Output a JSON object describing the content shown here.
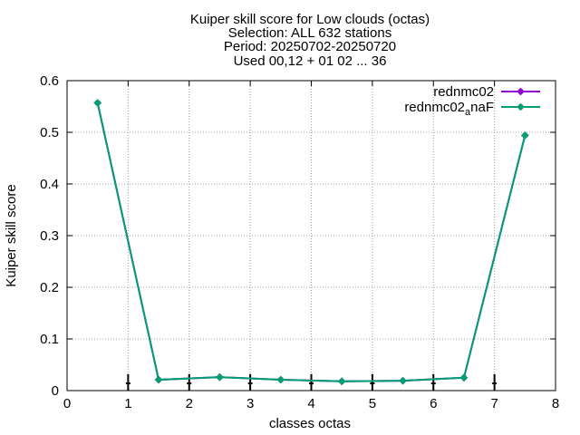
{
  "chart_data": {
    "type": "line",
    "title_lines": [
      "Kuiper skill score  for Low clouds (octas)",
      "Selection: ALL    632 stations",
      "Period: 20250702-20250720",
      "Used 00,12 + 01 02 ... 36"
    ],
    "xlabel": "classes octas",
    "ylabel": "Kuiper skill score",
    "xlim": [
      0,
      8
    ],
    "ylim": [
      0,
      0.6
    ],
    "xticks": [
      0,
      1,
      2,
      3,
      4,
      5,
      6,
      7,
      8
    ],
    "yticks": [
      0,
      0.1,
      0.2,
      0.3,
      0.4,
      0.5,
      0.6
    ],
    "xtick_labels": [
      "0",
      "1",
      "2",
      "3",
      "4",
      "5",
      "6",
      "7",
      "8"
    ],
    "ytick_labels": [
      "0",
      "0.1",
      "0.2",
      "0.3",
      "0.4",
      "0.5",
      "0.6"
    ],
    "grid": true,
    "legend_position": "top-right",
    "x": [
      0.5,
      1.5,
      2.5,
      3.5,
      4.5,
      5.5,
      6.5,
      7.5
    ],
    "series": [
      {
        "name": "rednmc02",
        "color": "#9400d3",
        "values": [
          0.557,
          0.021,
          0.026,
          0.021,
          0.018,
          0.019,
          0.025,
          0.494
        ]
      },
      {
        "name": "rednmc02_anaF",
        "legend_base": "rednmc02",
        "legend_sub": "a",
        "legend_rest": "naF",
        "color": "#009e73",
        "values": [
          0.557,
          0.021,
          0.026,
          0.021,
          0.018,
          0.019,
          0.025,
          0.494
        ]
      }
    ],
    "error_bars": {
      "color": "#000000",
      "x": [
        1,
        2,
        3,
        4,
        5,
        6,
        7
      ],
      "center": [
        0.014,
        0.014,
        0.014,
        0.014,
        0.014,
        0.014,
        0.014
      ],
      "low": [
        0.0,
        0.0,
        0.0,
        0.0,
        0.0,
        0.0,
        0.0
      ],
      "high": [
        0.032,
        0.032,
        0.032,
        0.032,
        0.032,
        0.032,
        0.032
      ]
    }
  }
}
